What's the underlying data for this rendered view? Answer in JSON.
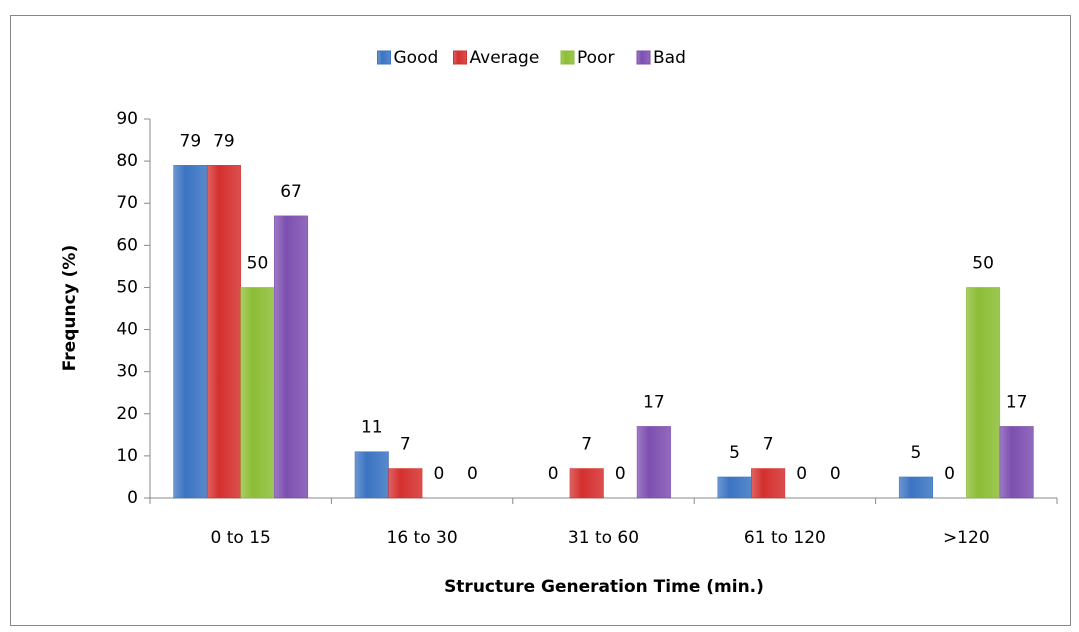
{
  "chart_data": {
    "type": "bar",
    "x_label": "Structure Generation Time (min.)",
    "y_label": "Frequncy (%)",
    "categories": [
      "0 to 15",
      "16 to 30",
      "31 to 60",
      "61 to 120",
      ">120"
    ],
    "series": [
      {
        "name": "Good",
        "color": "#3b74c2",
        "values": [
          79,
          11,
          0,
          5,
          5
        ]
      },
      {
        "name": "Average",
        "color": "#d4302e",
        "values": [
          79,
          7,
          7,
          7,
          0
        ]
      },
      {
        "name": "Poor",
        "color": "#8cbd35",
        "values": [
          50,
          0,
          0,
          0,
          50
        ]
      },
      {
        "name": "Bad",
        "color": "#7d4fb0",
        "values": [
          67,
          0,
          17,
          0,
          17
        ]
      }
    ],
    "ylim": [
      0,
      90
    ],
    "yticks": [
      0,
      10,
      20,
      30,
      40,
      50,
      60,
      70,
      80,
      90
    ],
    "grid": false,
    "legend": "top"
  }
}
